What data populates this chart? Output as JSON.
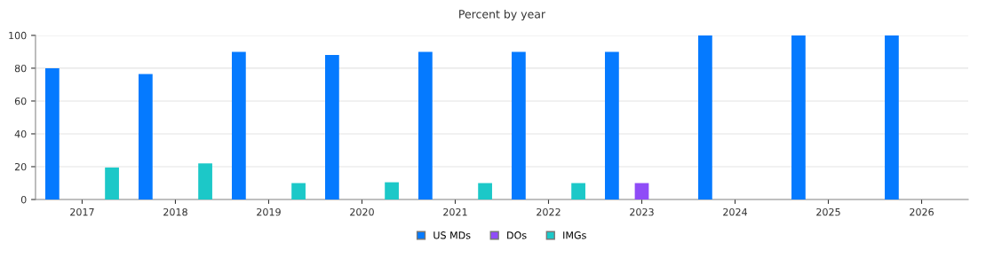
{
  "chart_data": {
    "type": "bar",
    "title": "Percent by year",
    "categories": [
      "2017",
      "2018",
      "2019",
      "2020",
      "2021",
      "2022",
      "2023",
      "2024",
      "2025",
      "2026"
    ],
    "series": [
      {
        "name": "US MDs",
        "color": "#057aff",
        "values": [
          80,
          76.5,
          90,
          88,
          90,
          90,
          90,
          100,
          100,
          100
        ]
      },
      {
        "name": "DOs",
        "color": "#8f4cf7",
        "values": [
          null,
          null,
          null,
          null,
          null,
          null,
          10,
          null,
          null,
          null
        ]
      },
      {
        "name": "IMGs",
        "color": "#1cc8c8",
        "values": [
          19.5,
          22,
          10,
          10.5,
          10,
          10,
          null,
          null,
          null,
          null
        ]
      }
    ],
    "ylim": [
      0,
      100
    ],
    "yticks": [
      0,
      20,
      40,
      60,
      80,
      100
    ],
    "grid": "y",
    "legend": "bottom"
  }
}
